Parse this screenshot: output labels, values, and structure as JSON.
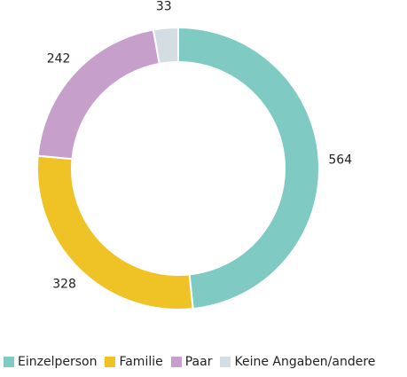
{
  "chart_data": {
    "type": "donut",
    "categories": [
      "Einzelperson",
      "Familie",
      "Paar",
      "Keine Angaben/andere"
    ],
    "values": [
      564,
      328,
      242,
      33
    ],
    "colors": [
      "#7fcbc4",
      "#efc325",
      "#c79fcb",
      "#d3dde3"
    ],
    "legend": "bottom"
  }
}
